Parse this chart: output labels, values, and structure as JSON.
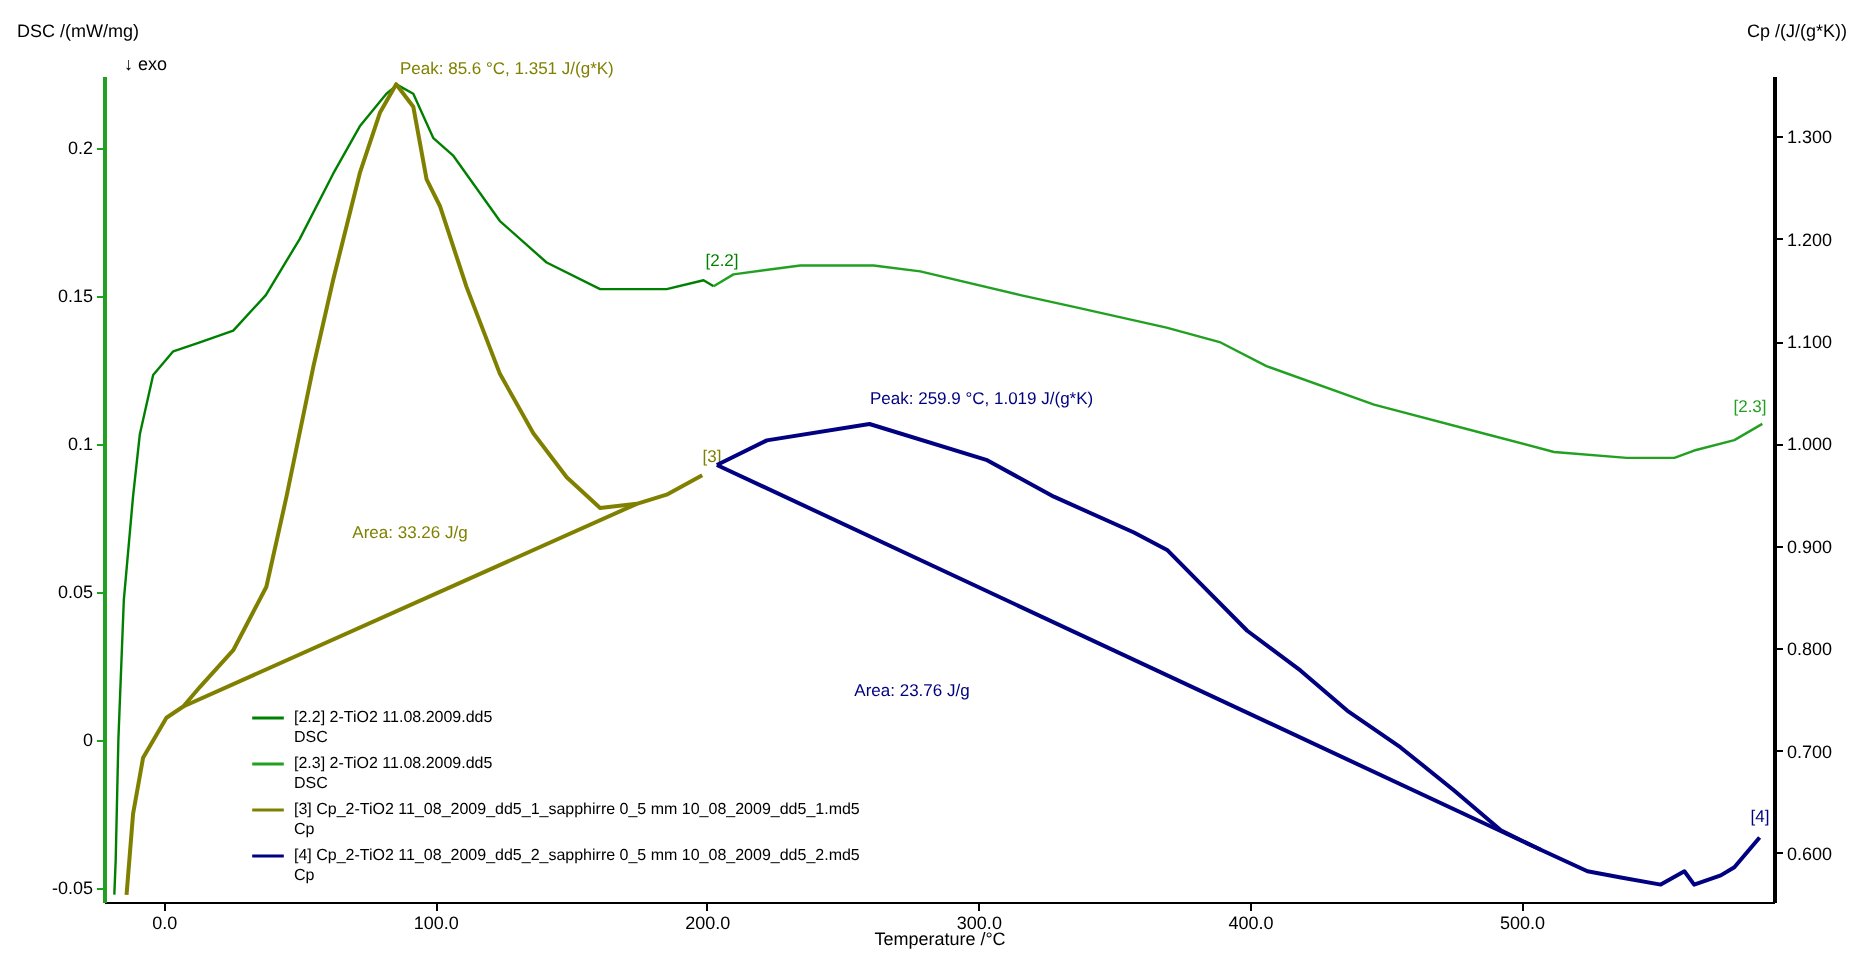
{
  "chart_data": {
    "type": "line",
    "xlabel": "Temperature /°C",
    "ylabel": "DSC /(mW/mg)",
    "y2label": "Cp /(J/(g*K))",
    "xlim": [
      -22,
      593
    ],
    "xticks": [
      {
        "value": 0,
        "label": "0.0"
      },
      {
        "value": 100,
        "label": "100.0"
      },
      {
        "value": 200,
        "label": "200.0"
      },
      {
        "value": 300,
        "label": "300.0"
      },
      {
        "value": 400,
        "label": "400.0"
      },
      {
        "value": 500,
        "label": "500.0"
      }
    ],
    "ylim": [
      -0.055,
      0.224
    ],
    "yticks": [
      -0.05,
      0,
      0.05,
      0.1,
      0.15,
      0.2
    ],
    "y2lim": [
      0.552,
      1.359
    ],
    "y2ticks": [
      {
        "value": 0.6,
        "label": "0.600"
      },
      {
        "value": 0.7,
        "label": "0.700"
      },
      {
        "value": 0.8,
        "label": "0.800"
      },
      {
        "value": 0.9,
        "label": "0.900"
      },
      {
        "value": 1.0,
        "label": "1.000"
      },
      {
        "value": 1.1,
        "label": "1.100"
      },
      {
        "value": 1.2,
        "label": "1.200"
      },
      {
        "value": 1.3,
        "label": "1.300"
      }
    ],
    "legend": "bottom left",
    "series": [
      {
        "name": "[2.2] 2-TiO2 11.08.2009.dd5 DSC",
        "color": "#008000",
        "x": [
          -18.2,
          -17.7,
          -16.7,
          -14.7,
          -11.3,
          -8.8,
          -3.9,
          3.5,
          13.3,
          25.6,
          37.6,
          50.1,
          62.4,
          72.2,
          82.0,
          86.0,
          91.9,
          99.3,
          106.7,
          123.8,
          141.0,
          160.7,
          185.2,
          198.8,
          202.5
        ],
        "values": [
          -0.0525,
          -0.041,
          0,
          0.047,
          0.082,
          0.103,
          0.123,
          0.131,
          0.134,
          0.138,
          0.15,
          0.169,
          0.191,
          0.207,
          0.218,
          0.221,
          0.218,
          0.203,
          0.197,
          0.175,
          0.161,
          0.152,
          0.152,
          0.155,
          0.153
        ]
      },
      {
        "name": "[2.3] 2-TiO2 11.08.2009.dd5 DSC",
        "color": "#22a022",
        "x": [
          202.5,
          209.8,
          234.4,
          261.4,
          278.6,
          315.5,
          335.2,
          369.3,
          389.2,
          406.1,
          445.7,
          487.2,
          512.0,
          538.8,
          556.3,
          563.6,
          578.4,
          588.7
        ],
        "values": [
          0.153,
          0.157,
          0.16,
          0.16,
          0.158,
          0.15,
          0.146,
          0.139,
          0.134,
          0.126,
          0.113,
          0.103,
          0.097,
          0.095,
          0.095,
          0.0975,
          0.101,
          0.1065
        ]
      },
      {
        "name": "[3] Cp_2-TiO2 11_08_2009_dd5_1_sapphirre 0_5 mm 10_08_2009_dd5_1.md5 Cp",
        "color": "#808000",
        "axis": "y2",
        "x": [
          -13.7,
          -11.3,
          -7.6,
          1.0,
          7.2,
          13.3,
          25.6,
          37.8,
          45.2,
          55.1,
          62.4,
          72.2,
          79.6,
          85.6,
          91.9,
          96.8,
          101.7,
          111.5,
          123.8,
          136.1,
          148.4,
          160.7,
          174.2,
          185.2,
          198.3
        ],
        "values": [
          0.559,
          0.638,
          0.693,
          0.732,
          0.743,
          0.762,
          0.798,
          0.86,
          0.948,
          1.075,
          1.16,
          1.264,
          1.323,
          1.351,
          1.329,
          1.258,
          1.232,
          1.153,
          1.068,
          1.01,
          0.967,
          0.937,
          0.941,
          0.95,
          0.969
        ]
      },
      {
        "name": "[4] Cp_2-TiO2 11_08_2009_dd5_2_sapphirre 0_5 mm 10_08_2009_dd5_2.md5 Cp",
        "color": "#000080",
        "axis": "y2",
        "x": [
          203.7,
          222.1,
          259.9,
          302.9,
          327.8,
          357.3,
          369.5,
          381.8,
          399.0,
          418.7,
          435.8,
          455.5,
          475.2,
          492.4,
          507.1,
          524.3,
          536.6,
          551.3,
          560.0,
          563.6,
          573.4,
          578.4,
          587.7
        ],
        "values": [
          0.979,
          1.003,
          1.019,
          0.984,
          0.948,
          0.913,
          0.896,
          0.863,
          0.817,
          0.778,
          0.739,
          0.703,
          0.661,
          0.622,
          0.603,
          0.582,
          0.576,
          0.569,
          0.582,
          0.569,
          0.578,
          0.586,
          0.615
        ]
      },
      {
        "type": "line",
        "color": "#808000",
        "axis": "y2",
        "x": [
          7.2,
          174.2
        ],
        "values": [
          0.743,
          0.941
        ]
      },
      {
        "type": "line",
        "color": "#000080",
        "axis": "y2",
        "x": [
          203.7,
          507.1
        ],
        "values": [
          0.979,
          0.603
        ]
      }
    ],
    "annotations": [
      "↓ exo",
      "Peak: 85.6 °C, 1.351 J/(g*K)",
      "Peak: 259.9 °C, 1.019 J/(g*K)",
      "Area: 33.26 J/g",
      "Area: 23.76 J/g",
      "[2.2]",
      "[2.3]",
      "[3]",
      "[4]"
    ]
  }
}
